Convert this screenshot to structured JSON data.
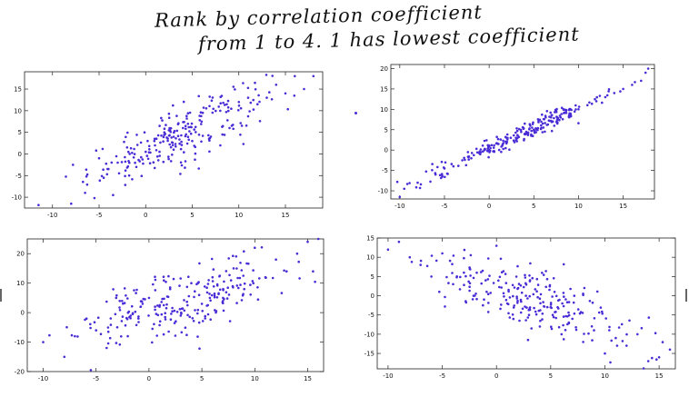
{
  "annotation": {
    "line1": "Rank by correlation coefficient",
    "line2": "from 1 to 4. 1 has lowest coefficient"
  },
  "point_color": "#4a2bd6",
  "chart_data": [
    {
      "type": "scatter",
      "title": "",
      "xlabel": "",
      "ylabel": "",
      "xlim": [
        -13,
        19
      ],
      "ylim": [
        -12.5,
        19
      ],
      "xticks": [
        "-10",
        "-5",
        "0",
        "5",
        "10",
        "15"
      ],
      "yticks": [
        "-10",
        "-5",
        "0",
        "5",
        "10",
        "15"
      ],
      "grid": false,
      "trend": {
        "slope": 0.95,
        "intercept": 1.0,
        "noise": 3.2,
        "x_mean": 3.5,
        "x_sd": 4.8
      },
      "points": [
        [
          -11.5,
          -11.8
        ],
        [
          -11,
          -12.8
        ],
        [
          -8,
          -11.5
        ],
        [
          -7.8,
          -2.5
        ],
        [
          -6.5,
          -9
        ],
        [
          -5.5,
          -10.2
        ],
        [
          -5,
          -1
        ],
        [
          -4.5,
          -5.5
        ],
        [
          -4,
          -3.5
        ],
        [
          -3.5,
          -9.5
        ],
        [
          -3,
          -2
        ],
        [
          -2,
          1.5
        ],
        [
          -1,
          -3
        ],
        [
          0,
          0.5
        ],
        [
          1,
          2
        ],
        [
          2,
          5
        ],
        [
          3,
          1
        ],
        [
          4,
          6
        ],
        [
          5,
          3
        ],
        [
          6,
          7.5
        ],
        [
          7,
          4
        ],
        [
          8,
          10
        ],
        [
          9,
          6
        ],
        [
          10,
          12
        ],
        [
          11,
          13
        ],
        [
          12,
          11.5
        ],
        [
          13,
          13
        ],
        [
          14,
          16
        ],
        [
          15,
          14
        ],
        [
          16,
          18
        ],
        [
          17,
          15
        ],
        [
          18,
          18
        ]
      ]
    },
    {
      "type": "scatter",
      "title": "",
      "xlabel": "",
      "ylabel": "",
      "xlim": [
        -11,
        18.5
      ],
      "ylim": [
        -12,
        21
      ],
      "xticks": [
        "-10",
        "-5",
        "0",
        "5",
        "10",
        "15"
      ],
      "yticks": [
        "-10",
        "-5",
        "0",
        "5",
        "10",
        "15",
        "20"
      ],
      "grid": false,
      "trend": {
        "slope": 1.0,
        "intercept": 0.5,
        "noise": 1.1,
        "x_mean": 3.5,
        "x_sd": 5.2
      },
      "points": [
        [
          -10,
          -11.5
        ],
        [
          -9.5,
          -9.5
        ],
        [
          -8,
          -8
        ],
        [
          -6,
          -6
        ],
        [
          -5,
          -4.5
        ],
        [
          -4,
          -4
        ],
        [
          -3,
          -2.5
        ],
        [
          -2,
          -2
        ],
        [
          -1,
          -1
        ],
        [
          0,
          0
        ],
        [
          1,
          1.5
        ],
        [
          2,
          2
        ],
        [
          3,
          3
        ],
        [
          4,
          4
        ],
        [
          5,
          5
        ],
        [
          6,
          6.5
        ],
        [
          7,
          7
        ],
        [
          8,
          8
        ],
        [
          9,
          9
        ],
        [
          10,
          10
        ],
        [
          11,
          11
        ],
        [
          12,
          12
        ],
        [
          13,
          13
        ],
        [
          14,
          14
        ],
        [
          15,
          15
        ],
        [
          16,
          16
        ],
        [
          17,
          17
        ],
        [
          17.5,
          19
        ],
        [
          17.8,
          20
        ]
      ]
    },
    {
      "type": "scatter",
      "title": "",
      "xlabel": "",
      "ylabel": "",
      "xlim": [
        -11.5,
        16.5
      ],
      "ylim": [
        -20,
        25
      ],
      "xticks": [
        "-10",
        "-5",
        "0",
        "5",
        "10",
        "15"
      ],
      "yticks": [
        "-20",
        "-10",
        "0",
        "10",
        "20"
      ],
      "grid": false,
      "trend": {
        "slope": 0.95,
        "intercept": 1.0,
        "noise": 5.5,
        "x_mean": 3.5,
        "x_sd": 4.8
      },
      "points": [
        [
          -10,
          -10
        ],
        [
          -8,
          -15
        ],
        [
          -7,
          -8
        ],
        [
          -5.5,
          -19.5
        ],
        [
          -5,
          -6
        ],
        [
          -4,
          -12
        ],
        [
          -3,
          -5
        ],
        [
          -2,
          -8
        ],
        [
          -1,
          -2
        ],
        [
          0,
          5
        ],
        [
          1,
          2
        ],
        [
          2,
          8
        ],
        [
          3,
          -1
        ],
        [
          4,
          10
        ],
        [
          5,
          3
        ],
        [
          6,
          12
        ],
        [
          7,
          5
        ],
        [
          8,
          15
        ],
        [
          9,
          8
        ],
        [
          10,
          22
        ],
        [
          11,
          12
        ],
        [
          12,
          18
        ],
        [
          13,
          14
        ],
        [
          14,
          20
        ],
        [
          15,
          24
        ],
        [
          16,
          25
        ],
        [
          15.5,
          14
        ]
      ]
    },
    {
      "type": "scatter",
      "title": "",
      "xlabel": "",
      "ylabel": "",
      "xlim": [
        -11,
        16.5
      ],
      "ylim": [
        -19,
        15
      ],
      "xticks": [
        "-10",
        "-5",
        "0",
        "5",
        "10",
        "15"
      ],
      "yticks": [
        "-15",
        "-10",
        "-5",
        "0",
        "5",
        "10",
        "15"
      ],
      "grid": false,
      "trend": {
        "slope": -0.85,
        "intercept": 2.0,
        "noise": 4.3,
        "x_mean": 3.5,
        "x_sd": 4.8
      },
      "points": [
        [
          -10,
          12
        ],
        [
          -9,
          14
        ],
        [
          -8,
          10
        ],
        [
          -7,
          8
        ],
        [
          -6,
          5
        ],
        [
          -5,
          11
        ],
        [
          -4,
          3
        ],
        [
          -3,
          6
        ],
        [
          -2,
          0
        ],
        [
          -1,
          4
        ],
        [
          0,
          13
        ],
        [
          1,
          -2
        ],
        [
          2,
          2
        ],
        [
          3,
          -5
        ],
        [
          4,
          -8
        ],
        [
          5,
          -3
        ],
        [
          6,
          -10
        ],
        [
          7,
          -6
        ],
        [
          8,
          -12
        ],
        [
          9,
          -9
        ],
        [
          10,
          -15
        ],
        [
          11,
          -11
        ],
        [
          12,
          -13
        ],
        [
          13,
          -10
        ],
        [
          14,
          -17
        ],
        [
          15,
          -16
        ],
        [
          16,
          -14
        ]
      ]
    }
  ]
}
